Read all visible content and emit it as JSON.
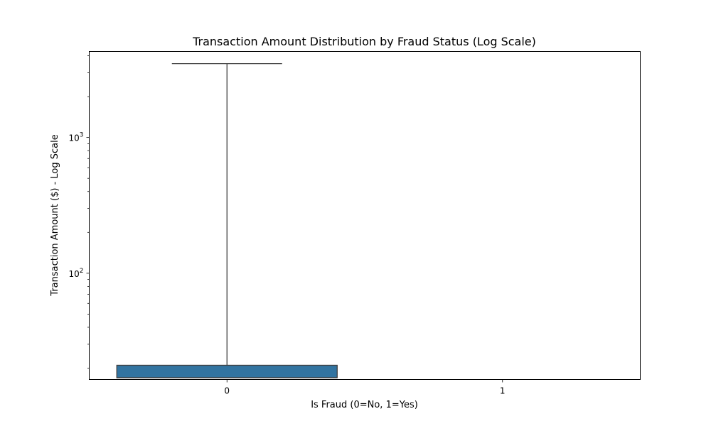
{
  "chart_data": {
    "type": "box",
    "title": "Transaction Amount Distribution by Fraud Status (Log Scale)",
    "xlabel": "Is Fraud (0=No, 1=Yes)",
    "ylabel": "Transaction Amount ($) - Log Scale",
    "y_scale": "log",
    "ylim": [
      16.5,
      4300
    ],
    "y_major_ticks": [
      {
        "value": 100,
        "base": "10",
        "exp": "2"
      },
      {
        "value": 1000,
        "base": "10",
        "exp": "3"
      }
    ],
    "y_minor_ticks": [
      20,
      30,
      40,
      50,
      60,
      70,
      80,
      90,
      200,
      300,
      400,
      500,
      600,
      700,
      800,
      900,
      2000,
      3000,
      4000
    ],
    "categories": [
      "0",
      "1"
    ],
    "boxes": [
      {
        "category": "0",
        "whisker_low": 17,
        "q1": 17,
        "median": 17,
        "q3": 21,
        "whisker_high": 3500
      },
      {
        "category": "1",
        "whisker_low": null,
        "q1": null,
        "median": null,
        "q3": null,
        "whisker_high": null
      }
    ],
    "grid": false,
    "legend": "none",
    "colors": {
      "box_fill": "#3274a1",
      "box_edge": "#3f3f3f",
      "axis": "#000000"
    }
  }
}
